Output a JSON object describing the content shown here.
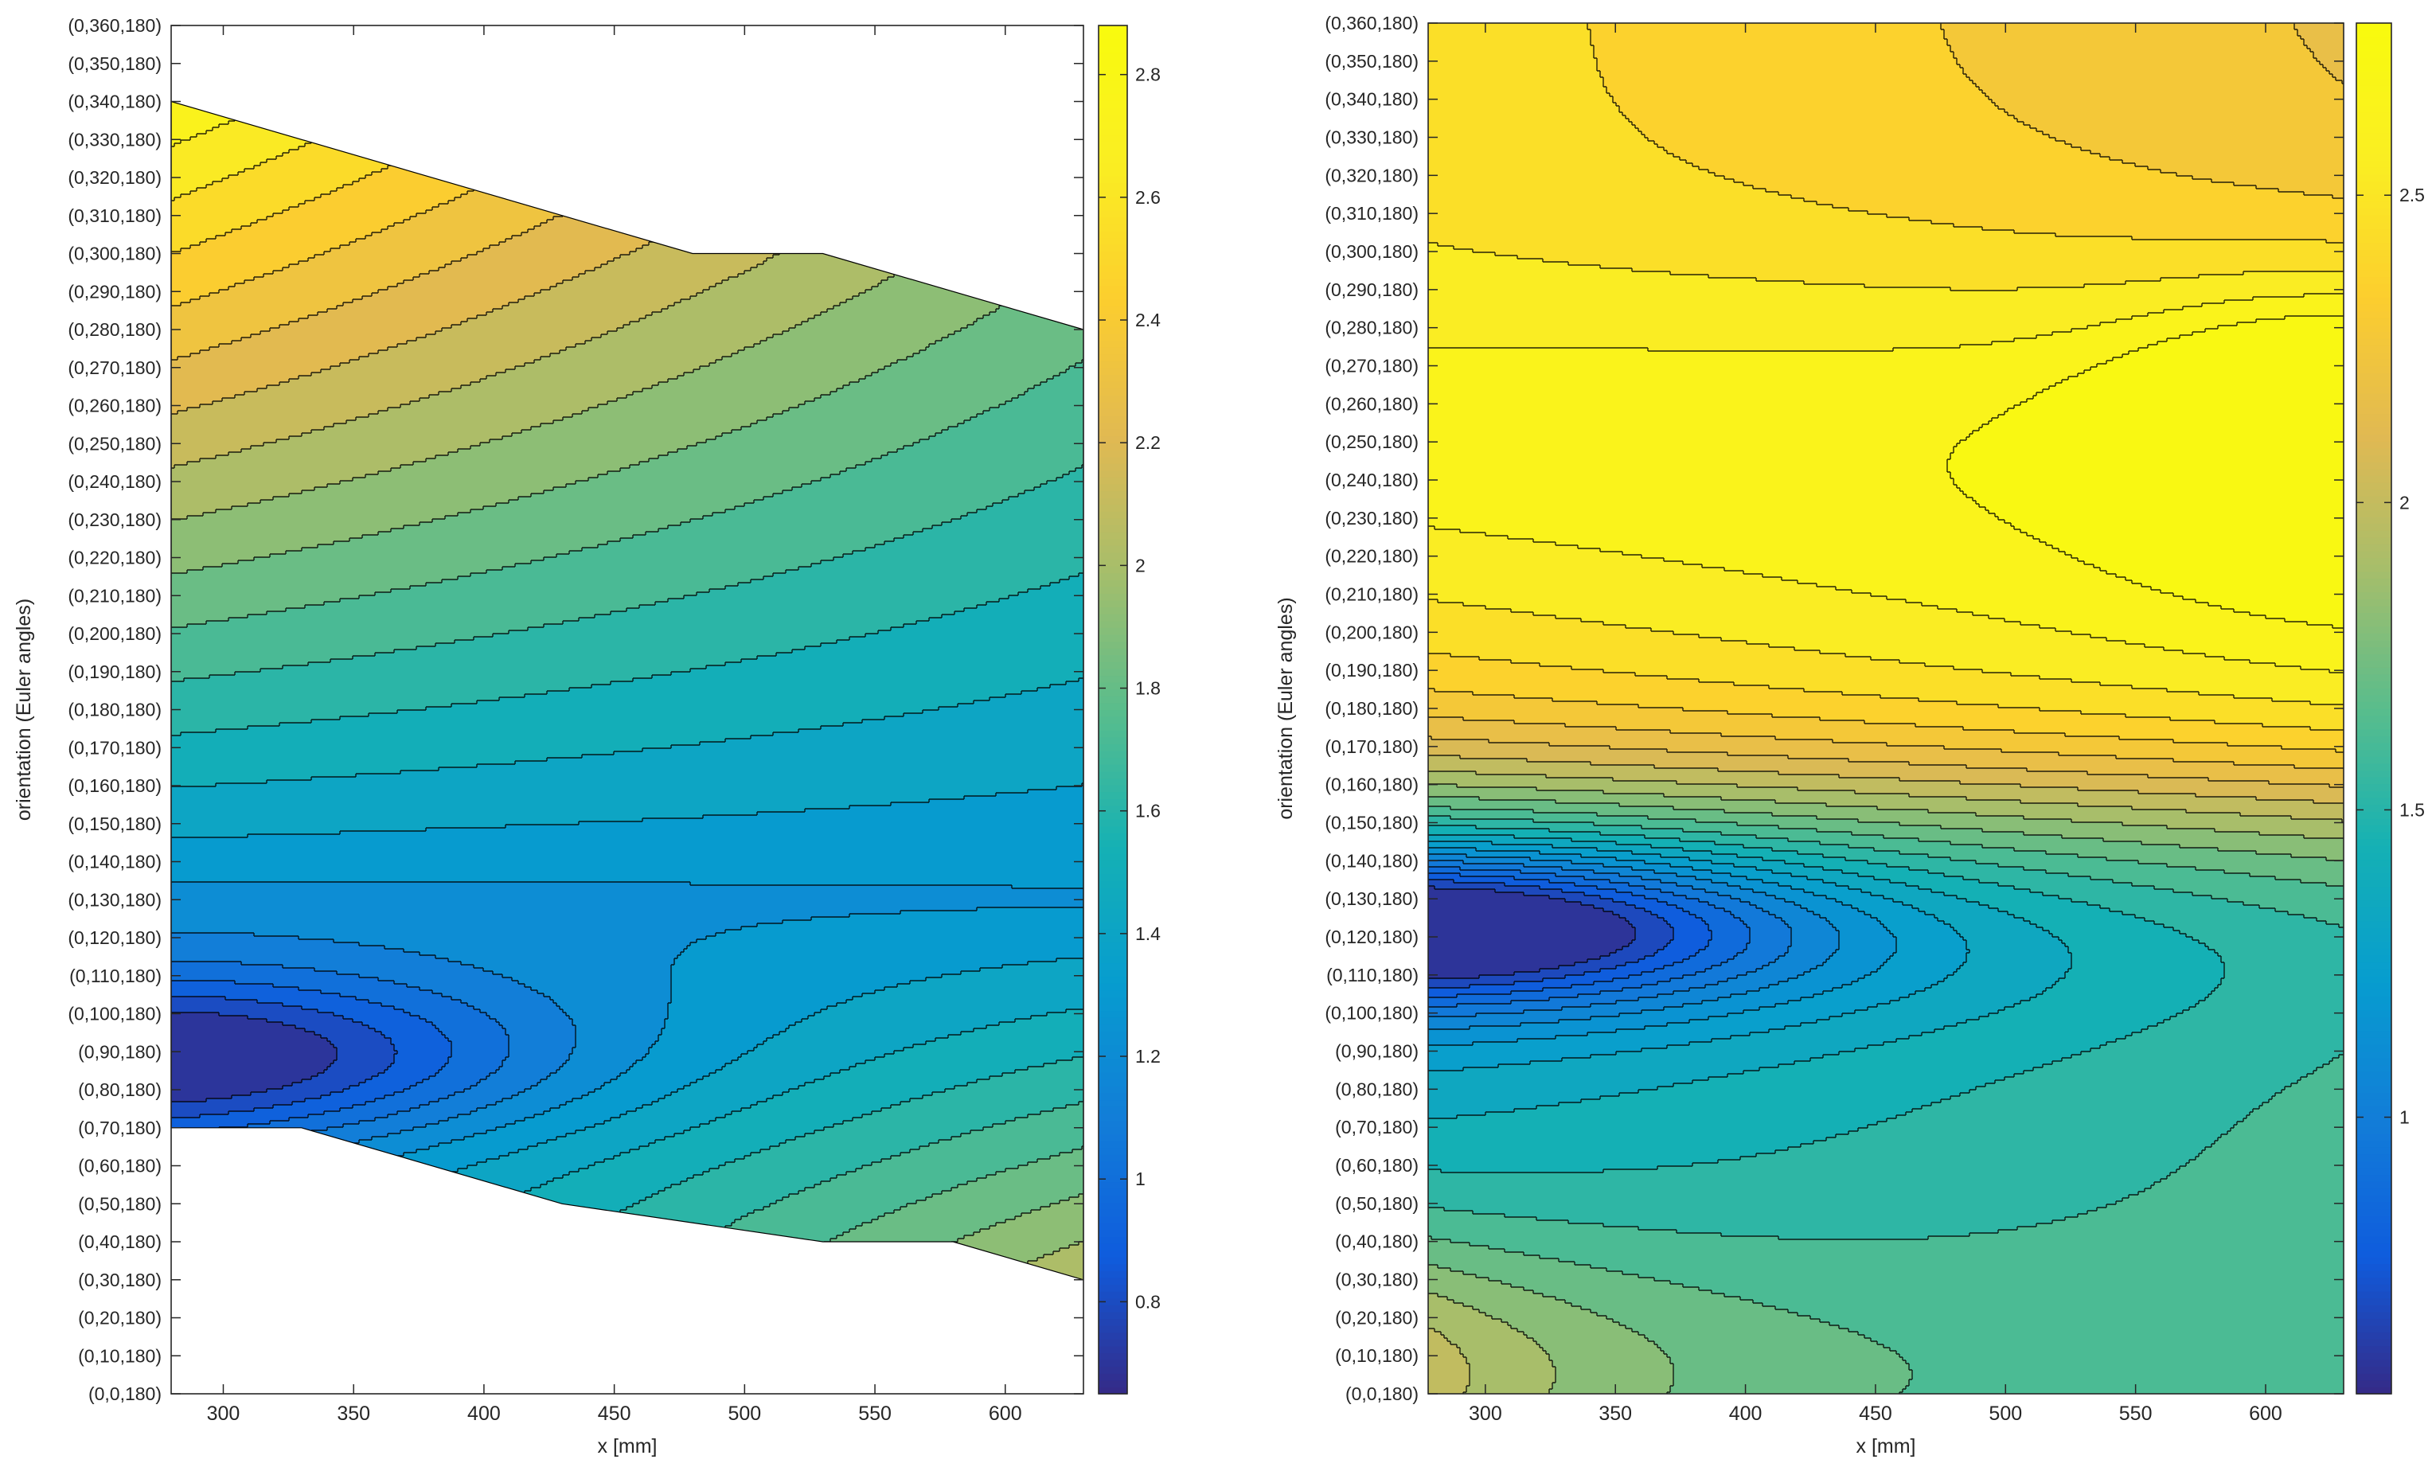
{
  "chart_data": [
    {
      "type": "contourf",
      "title": "",
      "xlabel": "x [mm]",
      "ylabel": "orientation (Euler angles)",
      "xlim": [
        280,
        630
      ],
      "ylim": [
        0,
        360
      ],
      "xticks": [
        300,
        350,
        400,
        450,
        500,
        550,
        600
      ],
      "xtick_labels": [
        "300",
        "350",
        "400",
        "450",
        "500",
        "550",
        "600"
      ],
      "yticks": [
        0,
        10,
        20,
        30,
        40,
        50,
        60,
        70,
        80,
        90,
        100,
        110,
        120,
        130,
        140,
        150,
        160,
        170,
        180,
        190,
        200,
        210,
        220,
        230,
        240,
        250,
        260,
        270,
        280,
        290,
        300,
        310,
        320,
        330,
        340,
        350,
        360
      ],
      "ytick_labels": [
        "(0,0,180)",
        "(0,10,180)",
        "(0,20,180)",
        "(0,30,180)",
        "(0,40,180)",
        "(0,50,180)",
        "(0,60,180)",
        "(0,70,180)",
        "(0,80,180)",
        "(0,90,180)",
        "(0,100,180)",
        "(0,110,180)",
        "(0,120,180)",
        "(0,130,180)",
        "(0,140,180)",
        "(0,150,180)",
        "(0,160,180)",
        "(0,170,180)",
        "(0,180,180)",
        "(0,190,180)",
        "(0,200,180)",
        "(0,210,180)",
        "(0,220,180)",
        "(0,230,180)",
        "(0,240,180)",
        "(0,250,180)",
        "(0,260,180)",
        "(0,270,180)",
        "(0,280,180)",
        "(0,290,180)",
        "(0,300,180)",
        "(0,310,180)",
        "(0,320,180)",
        "(0,330,180)",
        "(0,340,180)",
        "(0,350,180)",
        "(0,360,180)"
      ],
      "colormap": "parula",
      "clim": [
        0.65,
        2.88
      ],
      "colorbar_ticks": [
        0.8,
        1.0,
        1.2,
        1.4,
        1.6,
        1.8,
        2.0,
        2.2,
        2.4,
        2.6,
        2.8
      ],
      "colorbar_tick_labels": [
        "0.8",
        "1",
        "1.2",
        "1.4",
        "1.6",
        "1.8",
        "2",
        "2.2",
        "2.4",
        "2.6",
        "2.8"
      ],
      "levels": 22,
      "domain_upper": [
        [
          280,
          340
        ],
        [
          480,
          300
        ],
        [
          530,
          300
        ],
        [
          630,
          280
        ]
      ],
      "domain_lower": [
        [
          280,
          70
        ],
        [
          330,
          70
        ],
        [
          430,
          50
        ],
        [
          530,
          40
        ],
        [
          580,
          40
        ],
        [
          630,
          30
        ]
      ],
      "minimum": {
        "x": 280,
        "y": 88,
        "value": 0.67
      },
      "maximum": {
        "x": 280,
        "y": 318,
        "value": 2.87
      }
    },
    {
      "type": "contourf",
      "title": "",
      "xlabel": "x [mm]",
      "ylabel": "orientation (Euler angles)",
      "xlim": [
        278,
        630
      ],
      "ylim": [
        0,
        360
      ],
      "xticks": [
        300,
        350,
        400,
        450,
        500,
        550,
        600
      ],
      "xtick_labels": [
        "300",
        "350",
        "400",
        "450",
        "500",
        "550",
        "600"
      ],
      "yticks": [
        0,
        10,
        20,
        30,
        40,
        50,
        60,
        70,
        80,
        90,
        100,
        110,
        120,
        130,
        140,
        150,
        160,
        170,
        180,
        190,
        200,
        210,
        220,
        230,
        240,
        250,
        260,
        270,
        280,
        290,
        300,
        310,
        320,
        330,
        340,
        350,
        360
      ],
      "ytick_labels": [
        "(0,0,180)",
        "(0,10,180)",
        "(0,20,180)",
        "(0,30,180)",
        "(0,40,180)",
        "(0,50,180)",
        "(0,60,180)",
        "(0,70,180)",
        "(0,80,180)",
        "(0,90,180)",
        "(0,100,180)",
        "(0,110,180)",
        "(0,120,180)",
        "(0,130,180)",
        "(0,140,180)",
        "(0,150,180)",
        "(0,160,180)",
        "(0,170,180)",
        "(0,180,180)",
        "(0,190,180)",
        "(0,200,180)",
        "(0,210,180)",
        "(0,220,180)",
        "(0,230,180)",
        "(0,240,180)",
        "(0,250,180)",
        "(0,260,180)",
        "(0,270,180)",
        "(0,280,180)",
        "(0,290,180)",
        "(0,300,180)",
        "(0,310,180)",
        "(0,320,180)",
        "(0,330,180)",
        "(0,340,180)",
        "(0,350,180)",
        "(0,360,180)"
      ],
      "colormap": "parula",
      "clim": [
        0.55,
        2.78
      ],
      "colorbar_ticks": [
        1.0,
        1.5,
        2.0,
        2.5
      ],
      "colorbar_tick_labels": [
        "1",
        "1.5",
        "2",
        "2.5"
      ],
      "levels": 24,
      "minimum": {
        "x": 278,
        "y": 123,
        "value": 0.55
      },
      "maximum": {
        "x": 278,
        "y": 232,
        "value": 2.75
      }
    }
  ]
}
